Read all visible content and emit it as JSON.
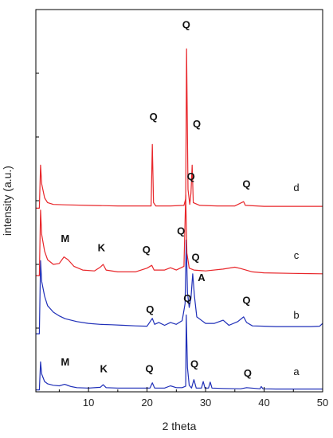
{
  "chart_data": {
    "type": "line",
    "title": "",
    "xlabel": "2 theta",
    "ylabel": "intensity (a.u.)",
    "xlim": [
      1,
      50
    ],
    "xticks": [
      10,
      20,
      30,
      40,
      50
    ],
    "grid": false,
    "colors": {
      "red": "#e8262a",
      "blue": "#1f2fb8"
    },
    "series": [
      {
        "name": "a",
        "color": "blue",
        "offset": 0,
        "points": [
          [
            1,
            0
          ],
          [
            1.6,
            0
          ],
          [
            1.8,
            1.5
          ],
          [
            2,
            0.85
          ],
          [
            2.5,
            0.45
          ],
          [
            3,
            0.33
          ],
          [
            4,
            0.25
          ],
          [
            5,
            0.22
          ],
          [
            5.9,
            0.3
          ],
          [
            6.3,
            0.26
          ],
          [
            7,
            0.18
          ],
          [
            8,
            0.12
          ],
          [
            10,
            0.1
          ],
          [
            12,
            0.14
          ],
          [
            12.5,
            0.28
          ],
          [
            13,
            0.12
          ],
          [
            15,
            0.1
          ],
          [
            18,
            0.1
          ],
          [
            20.5,
            0.1
          ],
          [
            20.9,
            0.38
          ],
          [
            21.3,
            0.1
          ],
          [
            23,
            0.1
          ],
          [
            24,
            0.22
          ],
          [
            25,
            0.12
          ],
          [
            26,
            0.12
          ],
          [
            26.6,
            0.2
          ],
          [
            26.7,
            4.0
          ],
          [
            26.9,
            1.2
          ],
          [
            27.2,
            0.25
          ],
          [
            27.6,
            0.1
          ],
          [
            28,
            0.55
          ],
          [
            28.4,
            0.1
          ],
          [
            29.3,
            0.1
          ],
          [
            29.6,
            0.45
          ],
          [
            29.9,
            0.1
          ],
          [
            30.5,
            0.1
          ],
          [
            30.8,
            0.42
          ],
          [
            31.1,
            0.1
          ],
          [
            33,
            0.08
          ],
          [
            36,
            0.06
          ],
          [
            37,
            0.12
          ],
          [
            39.3,
            0.06
          ],
          [
            39.5,
            0.18
          ],
          [
            39.8,
            0.06
          ],
          [
            42,
            0.05
          ],
          [
            45,
            0.05
          ],
          [
            48,
            0.05
          ],
          [
            50,
            0.05
          ]
        ]
      },
      {
        "name": "b",
        "color": "blue",
        "offset": 3,
        "points": [
          [
            1,
            0
          ],
          [
            1.6,
            0
          ],
          [
            1.8,
            3.9
          ],
          [
            2,
            2.8
          ],
          [
            2.5,
            2.0
          ],
          [
            3,
            1.5
          ],
          [
            4,
            1.15
          ],
          [
            5,
            0.95
          ],
          [
            6,
            0.8
          ],
          [
            8,
            0.65
          ],
          [
            10,
            0.55
          ],
          [
            12,
            0.5
          ],
          [
            14,
            0.48
          ],
          [
            16,
            0.45
          ],
          [
            18,
            0.42
          ],
          [
            20,
            0.4
          ],
          [
            20.9,
            0.82
          ],
          [
            21.3,
            0.5
          ],
          [
            22,
            0.6
          ],
          [
            23,
            0.45
          ],
          [
            24,
            0.6
          ],
          [
            25,
            0.5
          ],
          [
            26,
            0.7
          ],
          [
            26.5,
            1.6
          ],
          [
            26.7,
            5.0
          ],
          [
            26.9,
            2.2
          ],
          [
            27.2,
            1.4
          ],
          [
            27.5,
            1.9
          ],
          [
            27.8,
            3.2
          ],
          [
            28.1,
            2.0
          ],
          [
            28.5,
            0.9
          ],
          [
            30,
            0.55
          ],
          [
            31.5,
            0.55
          ],
          [
            33,
            0.72
          ],
          [
            34,
            0.45
          ],
          [
            35.5,
            0.65
          ],
          [
            36.5,
            0.9
          ],
          [
            37,
            0.6
          ],
          [
            38,
            0.42
          ],
          [
            40,
            0.4
          ],
          [
            42,
            0.38
          ],
          [
            44,
            0.38
          ],
          [
            46,
            0.38
          ],
          [
            48,
            0.38
          ],
          [
            49.5,
            0.4
          ],
          [
            50,
            0.55
          ]
        ]
      },
      {
        "name": "c",
        "color": "red",
        "offset": 6.1,
        "points": [
          [
            1,
            0
          ],
          [
            1.6,
            0
          ],
          [
            1.8,
            3.5
          ],
          [
            2,
            2.2
          ],
          [
            2.5,
            1.3
          ],
          [
            3,
            0.85
          ],
          [
            4,
            0.6
          ],
          [
            5,
            0.65
          ],
          [
            5.8,
            1.0
          ],
          [
            6.5,
            0.85
          ],
          [
            7.5,
            0.5
          ],
          [
            9,
            0.3
          ],
          [
            11,
            0.25
          ],
          [
            12,
            0.45
          ],
          [
            12.5,
            0.6
          ],
          [
            13,
            0.3
          ],
          [
            15,
            0.2
          ],
          [
            18,
            0.2
          ],
          [
            20,
            0.4
          ],
          [
            20.8,
            0.55
          ],
          [
            21.2,
            0.3
          ],
          [
            23,
            0.3
          ],
          [
            24,
            0.42
          ],
          [
            25,
            0.3
          ],
          [
            26.3,
            0.5
          ],
          [
            26.6,
            4.3
          ],
          [
            26.8,
            1.2
          ],
          [
            27.2,
            0.4
          ],
          [
            28,
            0.3
          ],
          [
            30,
            0.25
          ],
          [
            33,
            0.35
          ],
          [
            35,
            0.45
          ],
          [
            36,
            0.38
          ],
          [
            38,
            0.2
          ],
          [
            40,
            0.15
          ],
          [
            45,
            0.12
          ],
          [
            50,
            0.1
          ]
        ]
      },
      {
        "name": "d",
        "color": "red",
        "offset": 9.7,
        "points": [
          [
            1,
            0
          ],
          [
            1.6,
            0
          ],
          [
            1.8,
            2.3
          ],
          [
            2,
            1.3
          ],
          [
            2.5,
            0.55
          ],
          [
            3,
            0.3
          ],
          [
            4,
            0.2
          ],
          [
            6,
            0.18
          ],
          [
            10,
            0.15
          ],
          [
            15,
            0.12
          ],
          [
            20,
            0.12
          ],
          [
            20.7,
            0.12
          ],
          [
            20.9,
            3.4
          ],
          [
            21.1,
            0.3
          ],
          [
            21.5,
            0.12
          ],
          [
            24,
            0.12
          ],
          [
            26.3,
            0.15
          ],
          [
            26.6,
            0.5
          ],
          [
            26.75,
            8.5
          ],
          [
            27,
            1.0
          ],
          [
            27.3,
            0.2
          ],
          [
            27.5,
            0.8
          ],
          [
            27.7,
            2.3
          ],
          [
            27.9,
            0.3
          ],
          [
            29,
            0.15
          ],
          [
            32,
            0.12
          ],
          [
            35,
            0.12
          ],
          [
            36.5,
            0.35
          ],
          [
            36.8,
            0.15
          ],
          [
            40,
            0.1
          ],
          [
            45,
            0.1
          ],
          [
            50,
            0.1
          ]
        ]
      }
    ],
    "annotations": [
      {
        "text": "M",
        "x": 6.0,
        "y": 1.3
      },
      {
        "text": "K",
        "x": 12.6,
        "y": 0.95
      },
      {
        "text": "Q",
        "x": 20.4,
        "y": 0.95
      },
      {
        "text": "Q",
        "x": 26.9,
        "y": 4.7
      },
      {
        "text": "Q",
        "x": 28.1,
        "y": 1.2
      },
      {
        "text": "Q",
        "x": 37.2,
        "y": 0.7
      },
      {
        "text": "Q",
        "x": 20.5,
        "y": 4.1
      },
      {
        "text": "Q",
        "x": 25.8,
        "y": 8.3
      },
      {
        "text": "Q",
        "x": 28.3,
        "y": 6.9
      },
      {
        "text": "A",
        "x": 29.3,
        "y": 5.8
      },
      {
        "text": "Q",
        "x": 37.0,
        "y": 4.6
      },
      {
        "text": "M",
        "x": 6.0,
        "y": 7.9
      },
      {
        "text": "K",
        "x": 12.2,
        "y": 7.4
      },
      {
        "text": "Q",
        "x": 19.9,
        "y": 7.3
      },
      {
        "text": "Q",
        "x": 27.5,
        "y": 11.2
      },
      {
        "text": "Q",
        "x": 21.1,
        "y": 14.4
      },
      {
        "text": "Q",
        "x": 26.7,
        "y": 19.3
      },
      {
        "text": "Q",
        "x": 28.5,
        "y": 14.0
      },
      {
        "text": "Q",
        "x": 37.0,
        "y": 10.8
      }
    ],
    "curve_labels": [
      {
        "text": "a",
        "x": 45.5,
        "y": 0.8
      },
      {
        "text": "b",
        "x": 45.5,
        "y": 3.8
      },
      {
        "text": "c",
        "x": 45.5,
        "y": 7.0
      },
      {
        "text": "d",
        "x": 45.5,
        "y": 10.6
      }
    ]
  }
}
